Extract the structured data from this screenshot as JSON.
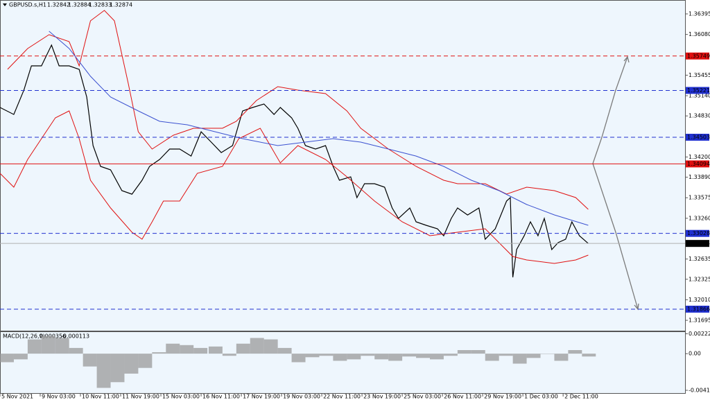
{
  "chart_data": [
    {
      "type": "line",
      "title": "GBPUSD.s,H1",
      "ohlc": [
        1.32842,
        1.32884,
        1.32833,
        1.32874
      ],
      "xlim": [
        0,
        545
      ],
      "xticks": [
        {
          "value": 0,
          "label": "5 Nov 2021"
        },
        {
          "value": 32,
          "label": "9 Nov 03:00"
        },
        {
          "value": 64,
          "label": "10 Nov 11:00"
        },
        {
          "value": 96,
          "label": "11 Nov 19:00"
        },
        {
          "value": 128,
          "label": "15 Nov 03:00"
        },
        {
          "value": 160,
          "label": "16 Nov 11:00"
        },
        {
          "value": 192,
          "label": "17 Nov 19:00"
        },
        {
          "value": 224,
          "label": "19 Nov 03:00"
        },
        {
          "value": 256,
          "label": "22 Nov 11:00"
        },
        {
          "value": 288,
          "label": "23 Nov 19:00"
        },
        {
          "value": 320,
          "label": "25 Nov 03:00"
        },
        {
          "value": 352,
          "label": "26 Nov 11:00"
        },
        {
          "value": 384,
          "label": "29 Nov 19:00"
        },
        {
          "value": 416,
          "label": "1 Dec 03:00"
        },
        {
          "value": 448,
          "label": "2 Dec 11:00"
        }
      ],
      "ylim": [
        1.31536,
        1.36608
      ],
      "yticks": [
        1.36395,
        {
          "value": 1.3608,
          "label": "1.36080"
        },
        1.35455,
        {
          "value": 1.3514,
          "label": "1.35140"
        },
        {
          "value": 1.3483,
          "label": "1.34830"
        },
        {
          "value": 1.342,
          "label": "1.34200"
        },
        {
          "value": 1.3389,
          "label": "1.33890"
        },
        1.33575,
        {
          "value": 1.3326,
          "label": "1.33260"
        },
        1.32635,
        1.32325,
        {
          "value": 1.3201,
          "label": "1.32010"
        },
        1.31695
      ],
      "series": [
        {
          "color": "#000000",
          "x": [
            0,
            11,
            19,
            25,
            33,
            41,
            47,
            55,
            63,
            69,
            74,
            80,
            88,
            97,
            105,
            113,
            119,
            127,
            135,
            143,
            152,
            160,
            168,
            176,
            185,
            193,
            201,
            210,
            218,
            223,
            232,
            237,
            243,
            251,
            259,
            265,
            270,
            279,
            284,
            290,
            298,
            306,
            312,
            317,
            326,
            331,
            339,
            348,
            353,
            359,
            364,
            372,
            381,
            386,
            394,
            403,
            406,
            408,
            411,
            417,
            422,
            428,
            433,
            439,
            444,
            450,
            455,
            461,
            468
          ],
          "values": [
            1.3496,
            1.34853,
            1.35225,
            1.35598,
            1.35598,
            1.35917,
            1.35598,
            1.35598,
            1.35544,
            1.35119,
            1.34375,
            1.34056,
            1.34003,
            1.33684,
            1.3363,
            1.33843,
            1.34056,
            1.34162,
            1.34322,
            1.34322,
            1.34215,
            1.34587,
            1.34428,
            1.34268,
            1.34375,
            1.34906,
            1.3496,
            1.35013,
            1.34853,
            1.3496,
            1.348,
            1.34641,
            1.34375,
            1.34322,
            1.34375,
            1.34056,
            1.33843,
            1.33896,
            1.33577,
            1.3379,
            1.3379,
            1.33737,
            1.33418,
            1.33258,
            1.33418,
            1.33205,
            1.33152,
            1.33099,
            1.32992,
            1.33258,
            1.33418,
            1.33311,
            1.33418,
            1.32939,
            1.33099,
            1.33524,
            1.33577,
            1.32355,
            1.3278,
            1.32992,
            1.33205,
            1.32992,
            1.33258,
            1.3278,
            1.32886,
            1.32939,
            1.33205,
            1.32992,
            1.32874
          ]
        },
        {
          "color": "#e01010",
          "x": [
            6,
            22,
            39,
            55,
            63,
            72,
            83,
            91,
            102,
            110,
            121,
            138,
            154,
            177,
            188,
            204,
            221,
            237,
            259,
            276,
            287,
            309,
            331,
            353,
            364,
            386,
            403,
            419,
            441,
            458,
            468
          ],
          "values": [
            1.35545,
            1.35864,
            1.36076,
            1.3597,
            1.35598,
            1.36289,
            1.36449,
            1.36289,
            1.35332,
            1.34588,
            1.34322,
            1.34535,
            1.34641,
            1.34641,
            1.34747,
            1.35066,
            1.35279,
            1.35226,
            1.35173,
            1.34907,
            1.34641,
            1.34322,
            1.34056,
            1.33843,
            1.3379,
            1.3379,
            1.33631,
            1.33737,
            1.33684,
            1.33578,
            1.33397
          ]
        },
        {
          "color": "#e01010",
          "x": [
            0,
            11,
            22,
            33,
            44,
            55,
            63,
            72,
            88,
            105,
            113,
            121,
            130,
            143,
            157,
            177,
            190,
            207,
            223,
            237,
            259,
            276,
            298,
            320,
            342,
            364,
            386,
            408,
            419,
            441,
            458,
            468
          ],
          "values": [
            1.3395,
            1.33737,
            1.34162,
            1.34481,
            1.348,
            1.34907,
            1.34481,
            1.33843,
            1.33418,
            1.33046,
            1.3294,
            1.33205,
            1.33524,
            1.33524,
            1.3395,
            1.34056,
            1.34481,
            1.34641,
            1.34109,
            1.34375,
            1.34162,
            1.33897,
            1.33524,
            1.33205,
            1.32993,
            1.33046,
            1.33099,
            1.32674,
            1.32621,
            1.32567,
            1.32621,
            1.32695
          ]
        },
        {
          "color": "#3a50d0",
          "x": [
            39,
            55,
            72,
            88,
            110,
            127,
            149,
            171,
            193,
            221,
            243,
            265,
            287,
            309,
            331,
            353,
            375,
            397,
            419,
            441,
            468
          ],
          "values": [
            1.3613,
            1.35864,
            1.35438,
            1.35119,
            1.34907,
            1.34747,
            1.34694,
            1.34588,
            1.34481,
            1.34375,
            1.34428,
            1.34481,
            1.34428,
            1.34322,
            1.34215,
            1.34056,
            1.33843,
            1.33684,
            1.33471,
            1.33312,
            1.33152
          ]
        }
      ],
      "levels": [
        {
          "value": 1.35749,
          "color": "#e01010",
          "style": "dashed"
        },
        {
          "value": 1.35221,
          "color": "#2030d0",
          "style": "dashed"
        },
        {
          "value": 1.34503,
          "color": "#2030d0",
          "style": "dashed"
        },
        {
          "value": 1.34094,
          "color": "#e01010",
          "style": "solid"
        },
        {
          "value": 1.33028,
          "color": "#2030d0",
          "style": "dashed"
        },
        {
          "value": 1.31866,
          "color": "#2030d0",
          "style": "dashed"
        }
      ],
      "last": 1.32874,
      "grid": false
    },
    {
      "type": "bar",
      "title": "MACD(12,26,9)",
      "indicator_values": [
        0.000356,
        -0.000113
      ],
      "x": [
        0,
        11,
        22,
        33,
        44,
        55,
        66,
        77,
        88,
        99,
        110,
        121,
        132,
        143,
        154,
        166,
        177,
        188,
        199,
        210,
        221,
        232,
        243,
        254,
        265,
        276,
        287,
        298,
        309,
        320,
        331,
        342,
        353,
        364,
        375,
        386,
        397,
        408,
        419,
        430,
        441,
        452,
        463
      ],
      "values": [
        -0.00096,
        -0.00064,
        0.0016,
        0.002,
        0.00176,
        0.00064,
        -0.00144,
        -0.00384,
        -0.0032,
        -0.00224,
        -0.0016,
        0.00016,
        0.00112,
        0.00096,
        0.00064,
        0.0008,
        -0.00024,
        0.00112,
        0.00176,
        0.0016,
        0.00064,
        -0.00096,
        -0.0004,
        -0.00024,
        -0.0008,
        -0.00064,
        -0.00024,
        -0.00064,
        -0.0008,
        -0.00032,
        -0.00048,
        -0.00064,
        -0.00024,
        0.0004,
        0.0004,
        -0.0008,
        -0.00024,
        -0.00112,
        -0.00048,
        0,
        -0.0008,
        0.0004,
        -0.00032
      ],
      "color": "#9a9a9a",
      "ylim": [
        -0.0045,
        0.0025
      ],
      "yticks": [
        0.002229,
        {
          "value": 0,
          "label": "0.00"
        },
        -0.004111
      ]
    }
  ]
}
